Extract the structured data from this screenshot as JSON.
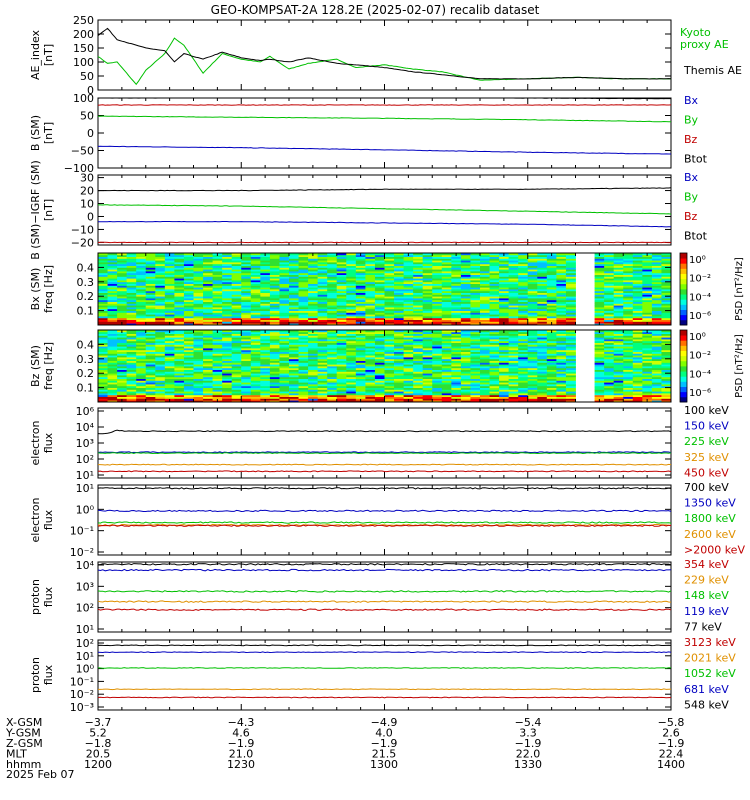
{
  "title": "GEO-KOMPSAT-2A 128.2E (2025-02-07) recalib dataset",
  "chart_data": [
    {
      "type": "line",
      "ylabel": "AE_index\n[nT]",
      "yticks": [
        "250",
        "200",
        "150",
        "100",
        "50",
        "0"
      ],
      "ylim": [
        0,
        250
      ],
      "series": [
        {
          "name": "Kyoto\nproxy AE",
          "color": "#00c000",
          "x": [
            0,
            2,
            4,
            8,
            10,
            14,
            16,
            18,
            22,
            26,
            30,
            34,
            36,
            40,
            44,
            50,
            54,
            60,
            66,
            72,
            80,
            90,
            100,
            110,
            120
          ],
          "values": [
            120,
            95,
            100,
            20,
            70,
            130,
            185,
            160,
            60,
            130,
            110,
            100,
            120,
            75,
            95,
            110,
            80,
            90,
            75,
            65,
            35,
            40,
            45,
            40,
            40
          ]
        },
        {
          "name": "Themis AE",
          "color": "#000000",
          "x": [
            0,
            2,
            4,
            8,
            10,
            14,
            16,
            18,
            22,
            26,
            30,
            34,
            36,
            40,
            44,
            50,
            54,
            60,
            66,
            72,
            80,
            90,
            100,
            110,
            120
          ],
          "values": [
            195,
            220,
            180,
            160,
            150,
            140,
            100,
            130,
            110,
            135,
            115,
            105,
            110,
            100,
            115,
            95,
            90,
            80,
            65,
            55,
            40,
            40,
            45,
            40,
            40
          ]
        }
      ]
    },
    {
      "type": "line",
      "ylabel": "B (SM)\n[nT]",
      "yticks": [
        "100",
        "50",
        "0",
        "−50",
        "−100"
      ],
      "ylim": [
        -100,
        100
      ],
      "series": [
        {
          "name": "Bx",
          "color": "#0000c0",
          "x": [
            0,
            30,
            60,
            90,
            120
          ],
          "values": [
            -38,
            -42,
            -48,
            -55,
            -60
          ]
        },
        {
          "name": "By",
          "color": "#00c000",
          "x": [
            0,
            30,
            60,
            90,
            120
          ],
          "values": [
            48,
            45,
            42,
            38,
            32
          ]
        },
        {
          "name": "Bz",
          "color": "#c00000",
          "x": [
            0,
            30,
            60,
            90,
            120
          ],
          "values": [
            80,
            80,
            80,
            80,
            80
          ]
        },
        {
          "name": "Btot",
          "color": "#000000",
          "x": [
            0,
            30,
            60,
            90,
            120
          ],
          "values": [
            100,
            101,
            103,
            100,
            98
          ]
        }
      ]
    },
    {
      "type": "line",
      "ylabel": "B (SM)−IGRF (SM)\n[nT]",
      "yticks": [
        "30",
        "20",
        "10",
        "0",
        "−10",
        "−20"
      ],
      "ylim": [
        -22,
        32
      ],
      "series": [
        {
          "name": "Bx",
          "color": "#0000c0",
          "x": [
            0,
            30,
            60,
            90,
            120
          ],
          "values": [
            -4,
            -4,
            -5,
            -6,
            -8
          ]
        },
        {
          "name": "By",
          "color": "#00c000",
          "x": [
            0,
            30,
            60,
            90,
            120
          ],
          "values": [
            9,
            8,
            6,
            4,
            2
          ]
        },
        {
          "name": "Bz",
          "color": "#c00000",
          "x": [
            0,
            30,
            60,
            90,
            120
          ],
          "values": [
            -20,
            -20,
            -20,
            -20,
            -20
          ]
        },
        {
          "name": "Btot",
          "color": "#000000",
          "x": [
            0,
            30,
            60,
            90,
            120
          ],
          "values": [
            20,
            20,
            21,
            21,
            22
          ]
        }
      ]
    },
    {
      "type": "heatmap",
      "ylabel": "Bx (SM)\nfreq [Hz]",
      "yticks": [
        "0.4",
        "0.3",
        "0.2",
        "0.1"
      ],
      "ylim": [
        0,
        0.5
      ],
      "colorbar_label": "PSD [nT²/Hz]",
      "colorbar_ticks": [
        "10⁰",
        "10⁻²",
        "10⁻⁴",
        "10⁻⁶"
      ],
      "data_gap": [
        100,
        104
      ]
    },
    {
      "type": "heatmap",
      "ylabel": "Bz (SM)\nfreq [Hz]",
      "yticks": [
        "0.4",
        "0.3",
        "0.2",
        "0.1"
      ],
      "ylim": [
        0,
        0.5
      ],
      "colorbar_label": "PSD [nT²/Hz]",
      "colorbar_ticks": [
        "10⁰",
        "10⁻²",
        "10⁻⁴",
        "10⁻⁶"
      ],
      "data_gap": [
        100,
        104
      ]
    },
    {
      "type": "line",
      "log": true,
      "ylabel": "electron\nflux",
      "yticks": [
        "10⁶",
        "10⁴",
        "10³",
        "10²",
        "10¹"
      ],
      "ylim": [
        10,
        1000000
      ],
      "series": [
        {
          "name": "100 keV",
          "color": "#000000",
          "x": [
            0,
            2,
            3,
            4,
            6,
            120
          ],
          "values": [
            15000,
            16000,
            20000,
            25000,
            22000,
            22000
          ]
        },
        {
          "name": "150 keV",
          "color": "#0000c0",
          "x": [
            0,
            120
          ],
          "values": [
            700,
            700
          ]
        },
        {
          "name": "225 keV",
          "color": "#00c000",
          "x": [
            0,
            120
          ],
          "values": [
            600,
            600
          ]
        },
        {
          "name": "325 keV",
          "color": "#e09000",
          "x": [
            0,
            120
          ],
          "values": [
            90,
            90
          ]
        },
        {
          "name": "450 keV",
          "color": "#c00000",
          "x": [
            0,
            120
          ],
          "values": [
            30,
            30
          ]
        }
      ]
    },
    {
      "type": "line",
      "log": true,
      "ylabel": "electron\nflux",
      "yticks": [
        "10¹",
        "10⁰",
        "10⁻¹",
        "10⁻²"
      ],
      "ylim": [
        0.005,
        10
      ],
      "series": [
        {
          "name": "700 keV",
          "color": "#000000",
          "x": [
            0,
            120
          ],
          "values": [
            7,
            7
          ]
        },
        {
          "name": "1350 keV",
          "color": "#0000c0",
          "x": [
            0,
            120
          ],
          "values": [
            0.6,
            0.6
          ]
        },
        {
          "name": "1800 keV",
          "color": "#00c000",
          "x": [
            0,
            120
          ],
          "values": [
            0.17,
            0.17
          ]
        },
        {
          "name": "2600 keV",
          "color": "#e09000",
          "x": [
            0,
            120
          ],
          "values": [
            0.13,
            0.13
          ]
        },
        {
          "name": ">2000 keV",
          "color": "#c00000",
          "x": [
            0,
            120
          ],
          "values": [
            0.12,
            0.12
          ]
        }
      ]
    },
    {
      "type": "line",
      "log": true,
      "ylabel": "proton\nflux",
      "yticks": [
        "10⁴",
        "10³",
        "10²",
        "10¹"
      ],
      "ylim": [
        10,
        10000
      ],
      "series": [
        {
          "name": "354 keV",
          "color": "#c00000",
          "x": [
            0,
            120
          ],
          "values": [
            90,
            90
          ]
        },
        {
          "name": "229 keV",
          "color": "#e09000",
          "x": [
            0,
            120
          ],
          "values": [
            200,
            200
          ]
        },
        {
          "name": "148 keV",
          "color": "#00c000",
          "x": [
            0,
            120
          ],
          "values": [
            550,
            550
          ]
        },
        {
          "name": "119 keV",
          "color": "#0000c0",
          "x": [
            0,
            120
          ],
          "values": [
            4500,
            4500
          ]
        },
        {
          "name": "77 keV",
          "color": "#000000",
          "x": [
            0,
            120
          ],
          "values": [
            8000,
            8000
          ]
        }
      ]
    },
    {
      "type": "line",
      "log": true,
      "ylabel": "proton\nflux",
      "yticks": [
        "10²",
        "10¹",
        "10⁰",
        "10⁻¹",
        "10⁻²",
        "10⁻³"
      ],
      "ylim": [
        0.0001,
        100
      ],
      "series": [
        {
          "name": "3123 keV",
          "color": "#c00000",
          "x": [
            0,
            120
          ],
          "values": [
            0.0012,
            0.0012
          ]
        },
        {
          "name": "2021 keV",
          "color": "#e09000",
          "x": [
            0,
            120
          ],
          "values": [
            0.006,
            0.006
          ]
        },
        {
          "name": "1052 keV",
          "color": "#00c000",
          "x": [
            0,
            120
          ],
          "values": [
            0.4,
            0.4
          ]
        },
        {
          "name": "681 keV",
          "color": "#0000c0",
          "x": [
            0,
            120
          ],
          "values": [
            9,
            9
          ]
        },
        {
          "name": "548 keV",
          "color": "#000000",
          "x": [
            0,
            120
          ],
          "values": [
            35,
            35
          ]
        }
      ]
    }
  ],
  "footer": {
    "rows": [
      {
        "label": "X-GSM",
        "values": [
          "−3.7",
          "−4.3",
          "−4.9",
          "−5.4",
          "−5.8"
        ]
      },
      {
        "label": "Y-GSM",
        "values": [
          "5.2",
          "4.6",
          "4.0",
          "3.3",
          "2.6"
        ]
      },
      {
        "label": "Z-GSM",
        "values": [
          "−1.8",
          "−1.9",
          "−1.9",
          "−1.9",
          "−1.9"
        ]
      },
      {
        "label": "MLT",
        "values": [
          "20.5",
          "21.0",
          "21.5",
          "22.0",
          "22.4"
        ]
      },
      {
        "label": "hhmm",
        "values": [
          "1200",
          "1230",
          "1300",
          "1330",
          "1400"
        ]
      }
    ],
    "date": "2025 Feb 07"
  }
}
